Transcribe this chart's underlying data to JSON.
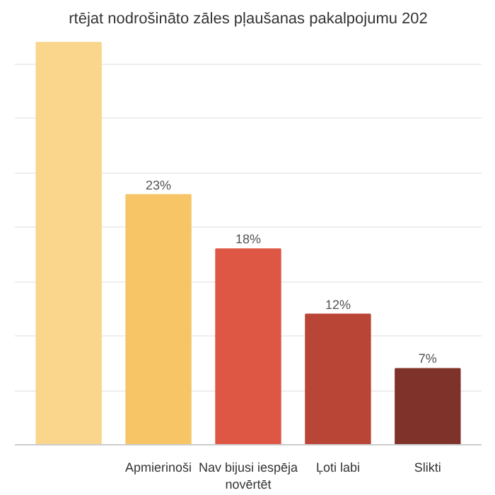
{
  "chart_data": {
    "type": "bar",
    "title": "rtējat nodrošināto zāles pļaušanas pakalpojumu 202",
    "categories": [
      null,
      "Apmierinoši",
      "Nav bijusi iespēja novērtēt",
      "Ļoti labi",
      "Slikti"
    ],
    "values": [
      37,
      23,
      18,
      12,
      7
    ],
    "value_labels": [
      null,
      "23%",
      "18%",
      "12%",
      "7%"
    ],
    "colors": [
      "#fad58c",
      "#f7c566",
      "#de5744",
      "#b84536",
      "#7e3229"
    ],
    "yticks": [
      {
        "value": 0,
        "label": null
      },
      {
        "value": 5,
        "label": null
      },
      {
        "value": 10,
        "label": null
      },
      {
        "value": 15,
        "label": null
      },
      {
        "value": 20,
        "label": null
      },
      {
        "value": 25,
        "label": null
      },
      {
        "value": 30,
        "label": null
      },
      {
        "value": 35,
        "label": null
      }
    ],
    "grid": "y",
    "tick_labels": "x"
  }
}
